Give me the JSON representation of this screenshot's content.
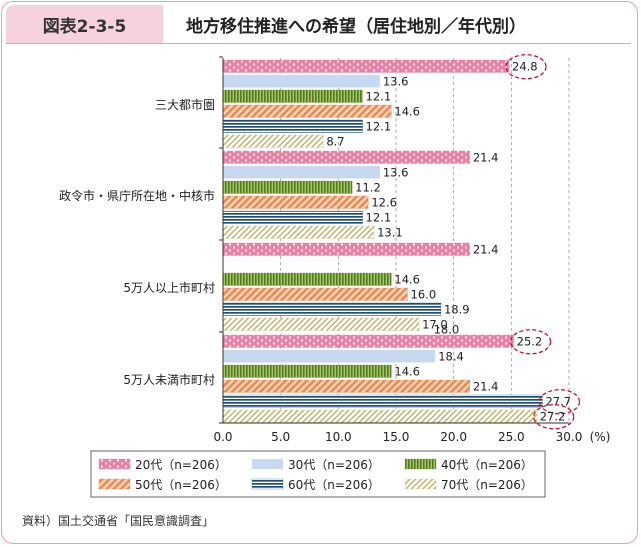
{
  "figure": {
    "number": "図表2-3-5",
    "title": "地方移住推進への希望（居住地別／年代別）",
    "source": "資料）国土交通省「国民意識調査」"
  },
  "chart_data": {
    "type": "bar",
    "orientation": "horizontal",
    "categories": [
      "三大都市圏",
      "政令市・県庁所在地・中核市",
      "5万人以上市町村",
      "5万人未満市町村"
    ],
    "series": [
      {
        "name": "20代（n=206）",
        "values": [
          24.8,
          21.4,
          21.4,
          25.2
        ],
        "color": "#ec7fa3",
        "pattern": "dots"
      },
      {
        "name": "30代（n=206）",
        "values": [
          13.6,
          13.6,
          null,
          18.4
        ],
        "color": "#c7d9f1",
        "pattern": "solid"
      },
      {
        "name": "40代（n=206）",
        "values": [
          12.1,
          11.2,
          14.6,
          14.6
        ],
        "color": "#6f9a2c",
        "pattern": "vertical-stripes"
      },
      {
        "name": "50代（n=206）",
        "values": [
          14.6,
          12.6,
          16.0,
          21.4
        ],
        "color": "#e9884f",
        "pattern": "diagonal-stripes"
      },
      {
        "name": "60代（n=206）",
        "values": [
          12.1,
          12.1,
          18.9,
          27.7
        ],
        "color": "#1f4e79",
        "pattern": "horizontal-stripes"
      },
      {
        "name": "70代（n=206）",
        "values": [
          8.7,
          13.1,
          17.0,
          27.2
        ],
        "color": "#c9bf82",
        "pattern": "diagonal-lines"
      }
    ],
    "extra_labels": {
      "5万人以上市町村": [
        "18.0"
      ]
    },
    "xlim": [
      0,
      30
    ],
    "xticks": [
      "0.0",
      "5.0",
      "10.0",
      "15.0",
      "20.0",
      "25.0",
      "30.0"
    ],
    "unit": "(%)",
    "grid": "dashed-vertical",
    "legend": "bottom",
    "highlighted": [
      "24.8",
      "25.2",
      "27.7",
      "27.2"
    ]
  }
}
